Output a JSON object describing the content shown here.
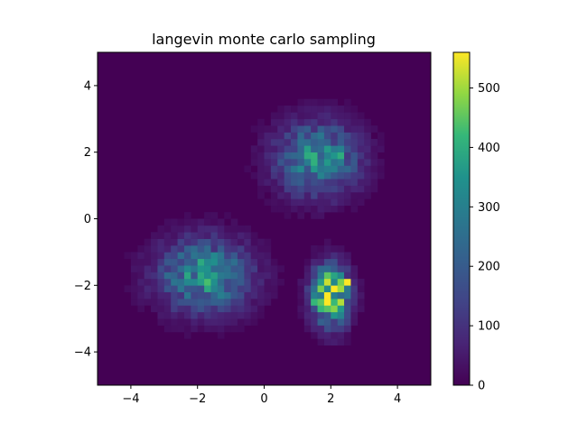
{
  "chart_data": {
    "type": "heatmap",
    "title": "langevin monte carlo sampling",
    "xlabel": "",
    "ylabel": "",
    "xlim": [
      -5,
      5
    ],
    "ylim": [
      -5,
      5
    ],
    "bins": 50,
    "x_ticks": [
      -4,
      -2,
      0,
      2,
      4
    ],
    "y_ticks": [
      -4,
      -2,
      0,
      2,
      4
    ],
    "colormap": "viridis",
    "background_color": "#440154",
    "colorbar": {
      "range": [
        0,
        560
      ],
      "ticks": [
        0,
        100,
        200,
        300,
        400,
        500
      ]
    },
    "clusters": [
      {
        "center": [
          -1.8,
          -1.7
        ],
        "spread": [
          0.95,
          0.75
        ],
        "peak": 330
      },
      {
        "center": [
          1.6,
          1.8
        ],
        "spread": [
          0.85,
          0.75
        ],
        "peak": 320
      },
      {
        "center": [
          2.0,
          -2.3
        ],
        "spread": [
          0.38,
          0.62
        ],
        "peak": 520
      }
    ],
    "hotspots": [
      {
        "x": 2.5,
        "y": -1.9,
        "count": 560
      },
      {
        "x": 2.3,
        "y": -1.9,
        "count": 470
      },
      {
        "x": 1.9,
        "y": -1.7,
        "count": 450
      },
      {
        "x": 1.7,
        "y": -2.5,
        "count": 450
      },
      {
        "x": 1.5,
        "y": -2.5,
        "count": 420
      },
      {
        "x": 2.3,
        "y": 1.9,
        "count": 400
      },
      {
        "x": 1.5,
        "y": 1.5,
        "count": 360
      },
      {
        "x": -1.9,
        "y": -1.9,
        "count": 370
      },
      {
        "x": -1.7,
        "y": -1.7,
        "count": 340
      },
      {
        "x": -2.3,
        "y": -1.5,
        "count": 320
      }
    ]
  }
}
